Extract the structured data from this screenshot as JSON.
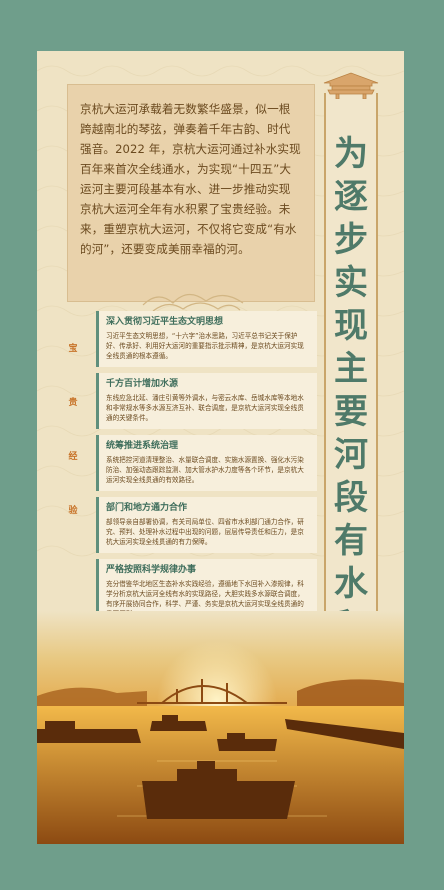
{
  "title": "为逐步实现主要河段有水积累经验",
  "intro": "京杭大运河承载着无数繁华盛景，似一根跨越南北的琴弦，弹奏着千年古韵、时代强音。2022 年，京杭大运河通过补水实现百年来首次全线通水，为实现“十四五”大运河主要河段基本有水、进一步推动实现京杭大运河全年有水积累了宝贵经验。未来，重塑京杭大运河，不仅将它变成“有水的河”，还要变成美丽幸福的河。",
  "side_label": [
    "宝",
    "贵",
    "经",
    "验"
  ],
  "experiences": [
    {
      "heading": "深入贯彻习近平生态文明思想",
      "body": "习近平生态文明思想，“十六字”治水思路，习近平总书记关于保护好、传承好、利用好大运河的重要指示批示精神，是京杭大运河实现全线贯通的根本遵循。"
    },
    {
      "heading": "千方百计增加水源",
      "body": "东线应急北延、潘庄引黄等外调水，与密云水库、岳城水库等本地水和非常规水等多水源互济互补、联合调度，是京杭大运河实现全线贯通的关键条件。"
    },
    {
      "heading": "统筹推进系统治理",
      "body": "系统把控河道清理整治、水量联合调度、实施水源置换、强化水污染防治、加强动态跟踪监测、加大管水护水力度等各个环节，是京杭大运河实现全线贯通的有效路径。"
    },
    {
      "heading": "部门和地方通力合作",
      "body": "部领导亲自部署协调，有关司局单位、四省市水利部门通力合作，研究、预判、处理补水过程中出现的问题，层层传导责任和压力，是京杭大运河实现全线贯通的有力保障。"
    },
    {
      "heading": "严格按照科学规律办事",
      "body": "充分借鉴华北地区生态补水实践经验，遵循地下水回补入渗规律，科学分析京杭大运河全线有水的实现路径，大胆实践多水源联合调度，有序开展协同合作，科学、严谨、务实是京杭大运河实现全线贯通的重要原则。"
    }
  ],
  "colors": {
    "background": "#6f9e8b",
    "panel": "#efe3c4",
    "title": "#4f7a69",
    "accent": "#c8742a",
    "text": "#6b4a1f"
  }
}
